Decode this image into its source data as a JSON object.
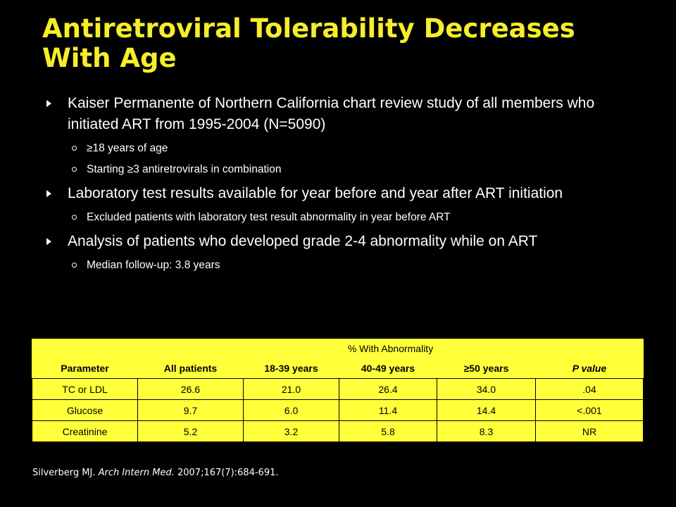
{
  "title": "Antiretroviral Tolerability Decreases With Age",
  "bullets": [
    {
      "text": "Kaiser Permanente of Northern California chart review study of all members who initiated ART from 1995-2004 (N=5090)",
      "sub": [
        "≥18 years of age",
        "Starting ≥3 antiretrovirals in combination"
      ]
    },
    {
      "text": "Laboratory test results available for year before and year after ART initiation",
      "sub": [
        "Excluded patients with laboratory test result abnormality in year before ART"
      ]
    },
    {
      "text": "Analysis of patients who developed grade 2-4 abnormality while on ART",
      "sub": [
        "Median follow-up: 3.8 years"
      ]
    }
  ],
  "table": {
    "span_header": "% With Abnormality",
    "columns": [
      "Parameter",
      "All patients",
      "18-39 years",
      "40-49 years",
      "≥50 years",
      "P value"
    ],
    "rows": [
      [
        "TC or LDL",
        "26.6",
        "21.0",
        "26.4",
        "34.0",
        ".04"
      ],
      [
        "Glucose",
        "9.7",
        "6.0",
        "11.4",
        "14.4",
        "<.001"
      ],
      [
        "Creatinine",
        "5.2",
        "3.2",
        "5.8",
        "8.3",
        "NR"
      ]
    ]
  },
  "citation": {
    "prefix": "Silverberg MJ.",
    "journal": "Arch Intern Med.",
    "suffix": "2007;167(7):684-691."
  }
}
